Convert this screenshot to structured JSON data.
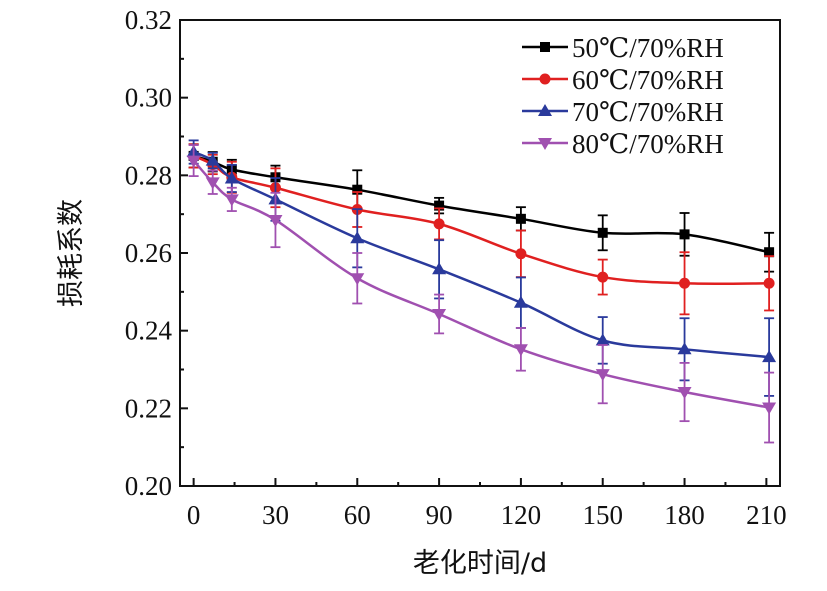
{
  "chart_data": {
    "type": "line",
    "xlabel": "老化时间/d",
    "ylabel": "损耗系数",
    "xlim": [
      -5,
      215
    ],
    "ylim": [
      0.2,
      0.32
    ],
    "xticks": [
      0,
      30,
      60,
      90,
      120,
      150,
      180,
      210
    ],
    "xtick_labels": [
      "0",
      "30",
      "60",
      "90",
      "120",
      "150",
      "180",
      "210"
    ],
    "yticks": [
      0.2,
      0.22,
      0.24,
      0.26,
      0.28,
      0.3,
      0.32
    ],
    "ytick_labels": [
      "0.20",
      "0.22",
      "0.24",
      "0.26",
      "0.28",
      "0.30",
      "0.32"
    ],
    "legend_position": "top-right",
    "grid": false,
    "x": [
      0,
      7,
      14,
      30,
      60,
      90,
      120,
      150,
      180,
      211
    ],
    "series": [
      {
        "name": "50℃/70%RH",
        "color": "#000000",
        "marker": "square",
        "values": [
          0.285,
          0.2835,
          0.2815,
          0.2795,
          0.2763,
          0.2722,
          0.2688,
          0.2652,
          0.2648,
          0.2602
        ],
        "errors": [
          0.003,
          0.0025,
          0.0025,
          0.003,
          0.005,
          0.002,
          0.003,
          0.0045,
          0.0055,
          0.005
        ]
      },
      {
        "name": "60℃/70%RH",
        "color": "#e02020",
        "marker": "circle",
        "values": [
          0.285,
          0.2828,
          0.2795,
          0.2768,
          0.2712,
          0.2675,
          0.2598,
          0.2538,
          0.2522,
          0.2522
        ],
        "errors": [
          0.003,
          0.0025,
          0.004,
          0.005,
          0.0045,
          0.004,
          0.006,
          0.0045,
          0.008,
          0.007
        ]
      },
      {
        "name": "70℃/70%RH",
        "color": "#2a3a9c",
        "marker": "triangle-up",
        "values": [
          0.286,
          0.2838,
          0.2792,
          0.2738,
          0.2638,
          0.2558,
          0.2472,
          0.2375,
          0.2352,
          0.2332
        ],
        "errors": [
          0.003,
          0.002,
          0.0035,
          0.0055,
          0.0075,
          0.0075,
          0.0065,
          0.006,
          0.008,
          0.01
        ]
      },
      {
        "name": "80℃/70%RH",
        "color": "#a050b0",
        "marker": "triangle-down",
        "values": [
          0.2838,
          0.2782,
          0.2738,
          0.2685,
          0.2535,
          0.2443,
          0.2352,
          0.2288,
          0.2242,
          0.2202
        ],
        "errors": [
          0.004,
          0.003,
          0.003,
          0.007,
          0.0065,
          0.005,
          0.0055,
          0.0075,
          0.0075,
          0.009
        ]
      }
    ]
  }
}
